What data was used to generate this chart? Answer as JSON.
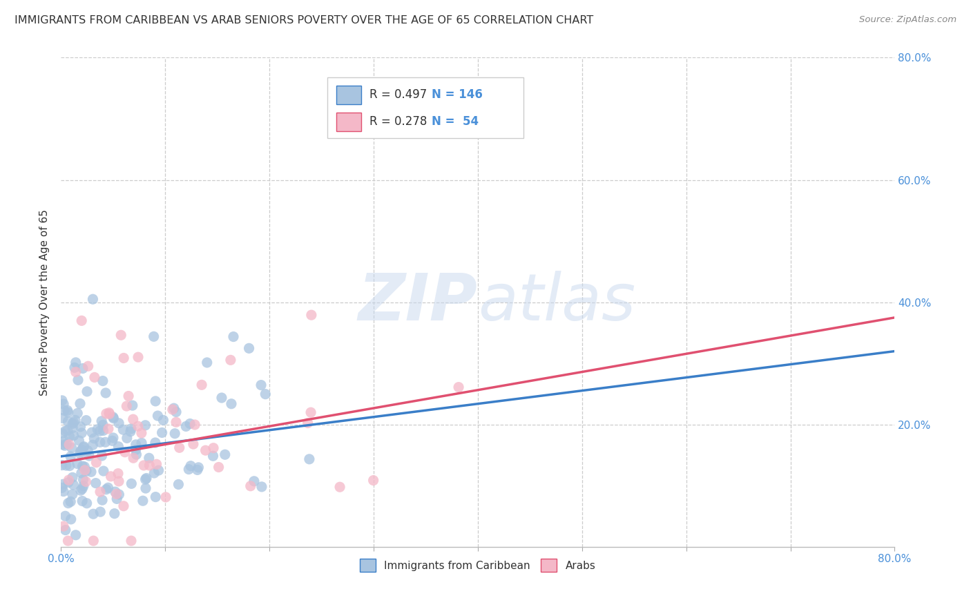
{
  "title": "IMMIGRANTS FROM CARIBBEAN VS ARAB SENIORS POVERTY OVER THE AGE OF 65 CORRELATION CHART",
  "source": "Source: ZipAtlas.com",
  "ylabel": "Seniors Poverty Over the Age of 65",
  "xlim": [
    0.0,
    0.8
  ],
  "ylim": [
    0.0,
    0.8
  ],
  "caribbean_color": "#a8c4e0",
  "arab_color": "#f4b8c8",
  "caribbean_line_color": "#3a7ec8",
  "arab_line_color": "#e05070",
  "caribbean_R": 0.497,
  "caribbean_N": 146,
  "arab_R": 0.278,
  "arab_N": 54,
  "legend_label_caribbean": "Immigrants from Caribbean",
  "legend_label_arab": "Arabs",
  "watermark_zip": "ZIP",
  "watermark_atlas": "atlas",
  "background_color": "#ffffff",
  "grid_color": "#cccccc",
  "axis_label_color": "#4a90d9",
  "caribbean_seed": 42,
  "arab_seed": 7,
  "carib_line_x0": 0.0,
  "carib_line_y0": 0.148,
  "carib_line_x1": 0.8,
  "carib_line_y1": 0.32,
  "arab_line_x0": 0.0,
  "arab_line_y0": 0.138,
  "arab_line_x1": 0.8,
  "arab_line_y1": 0.375
}
